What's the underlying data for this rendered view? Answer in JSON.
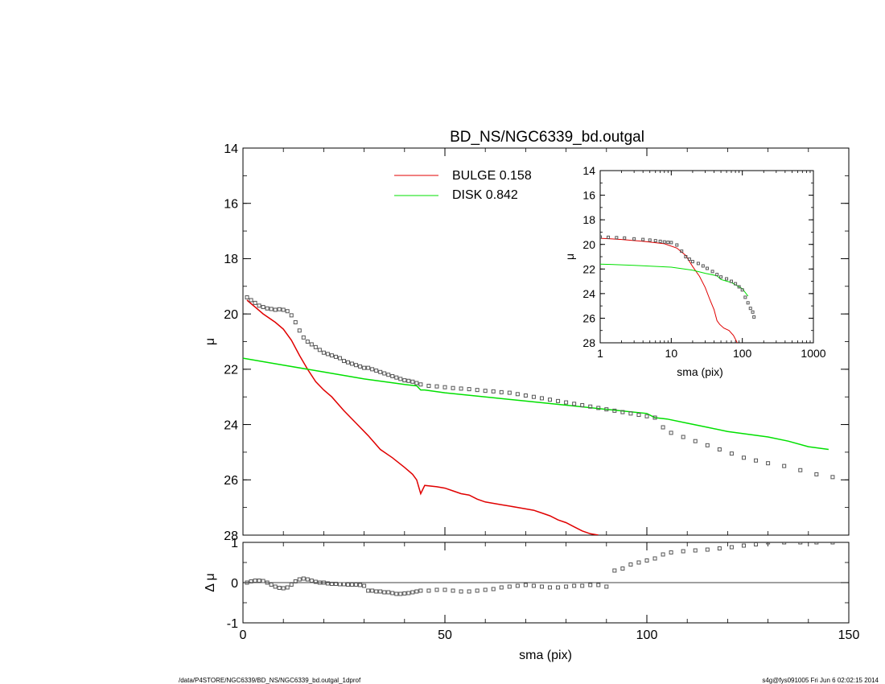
{
  "colors": {
    "bulge": "#e00000",
    "disk": "#00e000",
    "data": "#555555",
    "axis": "#000000"
  },
  "footer": {
    "left": "/data/P4STORE/NGC6339/BD_NS/NGC6339_bd.outgal_1dprof",
    "right": "s4g@fys091005  Fri Jun  6 02:02:15 2014"
  },
  "chart_data": [
    {
      "type": "line",
      "title": "BD_NS/NGC6339_bd.outgal",
      "xlabel": "",
      "ylabel": "μ",
      "xlim": [
        0,
        150
      ],
      "ylim": [
        28,
        14
      ],
      "yticks": [
        14,
        16,
        18,
        20,
        22,
        24,
        26,
        28
      ],
      "legend": [
        {
          "label": "BULGE  0.158",
          "color": "#e00000"
        },
        {
          "label": "DISK  0.842",
          "color": "#00e000"
        }
      ],
      "legend_position": "top-center",
      "series": [
        {
          "name": "BULGE",
          "style": "line",
          "x": [
            1,
            3,
            5,
            8,
            10,
            12,
            14,
            16,
            18,
            20,
            22,
            25,
            28,
            31,
            34,
            37,
            40,
            42,
            43,
            44,
            45,
            48,
            50,
            52,
            54,
            56,
            58,
            60,
            62,
            64,
            66,
            68,
            70,
            72,
            74,
            76,
            78,
            80,
            82,
            84,
            86,
            88
          ],
          "y": [
            19.5,
            19.75,
            20.0,
            20.3,
            20.55,
            20.95,
            21.5,
            22.0,
            22.45,
            22.75,
            23.0,
            23.5,
            23.95,
            24.4,
            24.9,
            25.2,
            25.55,
            25.8,
            26.0,
            26.5,
            26.2,
            26.25,
            26.3,
            26.4,
            26.5,
            26.55,
            26.7,
            26.8,
            26.85,
            26.9,
            26.95,
            27.0,
            27.05,
            27.1,
            27.2,
            27.3,
            27.45,
            27.55,
            27.7,
            27.85,
            27.95,
            28.0
          ]
        },
        {
          "name": "DISK",
          "style": "line",
          "x": [
            0,
            10,
            20,
            30,
            40,
            43,
            44,
            45,
            50,
            60,
            70,
            80,
            90,
            100,
            102,
            105,
            110,
            115,
            120,
            125,
            130,
            135,
            140,
            145
          ],
          "y": [
            21.6,
            21.85,
            22.1,
            22.35,
            22.55,
            22.6,
            22.75,
            22.75,
            22.85,
            23.0,
            23.15,
            23.3,
            23.45,
            23.6,
            23.75,
            23.8,
            23.95,
            24.1,
            24.25,
            24.35,
            24.45,
            24.6,
            24.8,
            24.9
          ]
        },
        {
          "name": "data",
          "style": "markers",
          "x": [
            1,
            2,
            3,
            4,
            5,
            6,
            7,
            8,
            9,
            10,
            11,
            12,
            13,
            14,
            15,
            16,
            17,
            18,
            19,
            20,
            21,
            22,
            23,
            24,
            25,
            26,
            27,
            28,
            29,
            30,
            31,
            32,
            33,
            34,
            35,
            36,
            37,
            38,
            39,
            40,
            41,
            42,
            43,
            44,
            46,
            48,
            50,
            52,
            54,
            56,
            58,
            60,
            62,
            64,
            66,
            68,
            70,
            72,
            74,
            76,
            78,
            80,
            82,
            84,
            86,
            88,
            90,
            92,
            94,
            96,
            98,
            100,
            102,
            104,
            106,
            109,
            112,
            115,
            118,
            121,
            124,
            127,
            130,
            134,
            138,
            142,
            146
          ],
          "y": [
            19.4,
            19.5,
            19.6,
            19.7,
            19.75,
            19.8,
            19.82,
            19.85,
            19.83,
            19.85,
            19.9,
            20.05,
            20.3,
            20.6,
            20.85,
            21.0,
            21.1,
            21.2,
            21.3,
            21.4,
            21.45,
            21.5,
            21.55,
            21.6,
            21.7,
            21.75,
            21.8,
            21.85,
            21.9,
            21.95,
            21.95,
            22.0,
            22.05,
            22.1,
            22.15,
            22.2,
            22.25,
            22.3,
            22.35,
            22.4,
            22.42,
            22.45,
            22.5,
            22.55,
            22.6,
            22.62,
            22.65,
            22.68,
            22.7,
            22.72,
            22.75,
            22.78,
            22.8,
            22.83,
            22.85,
            22.9,
            22.95,
            23.0,
            23.05,
            23.1,
            23.15,
            23.2,
            23.25,
            23.3,
            23.35,
            23.4,
            23.45,
            23.5,
            23.55,
            23.6,
            23.65,
            23.7,
            23.75,
            24.1,
            24.3,
            24.45,
            24.6,
            24.75,
            24.9,
            25.05,
            25.2,
            25.3,
            25.4,
            25.5,
            25.65,
            25.8,
            25.9
          ]
        }
      ]
    },
    {
      "type": "scatter",
      "title": "",
      "xlabel": "sma (pix)",
      "ylabel": "Δ μ",
      "xlim": [
        0,
        150
      ],
      "ylim": [
        -1,
        1
      ],
      "xticks": [
        0,
        50,
        100,
        150
      ],
      "yticks": [
        -1,
        0,
        1
      ],
      "series": [
        {
          "name": "residual",
          "style": "markers",
          "x": [
            1,
            2,
            3,
            4,
            5,
            6,
            7,
            8,
            9,
            10,
            11,
            12,
            13,
            14,
            15,
            16,
            17,
            18,
            19,
            20,
            21,
            22,
            23,
            24,
            25,
            26,
            27,
            28,
            29,
            30,
            31,
            32,
            33,
            34,
            35,
            36,
            37,
            38,
            39,
            40,
            41,
            42,
            43,
            44,
            46,
            48,
            50,
            52,
            54,
            56,
            58,
            60,
            62,
            64,
            66,
            68,
            70,
            72,
            74,
            76,
            78,
            80,
            82,
            84,
            86,
            88,
            90,
            92,
            94,
            96,
            98,
            100,
            102,
            104,
            106,
            109,
            112,
            115,
            118,
            121,
            124,
            127,
            130,
            134,
            138,
            142,
            146
          ],
          "y": [
            0.0,
            0.03,
            0.05,
            0.05,
            0.04,
            0.0,
            -0.05,
            -0.1,
            -0.13,
            -0.14,
            -0.12,
            -0.05,
            0.03,
            0.08,
            0.1,
            0.08,
            0.05,
            0.02,
            0.0,
            0.0,
            -0.02,
            -0.03,
            -0.03,
            -0.04,
            -0.04,
            -0.05,
            -0.05,
            -0.05,
            -0.06,
            -0.08,
            -0.2,
            -0.2,
            -0.22,
            -0.22,
            -0.24,
            -0.24,
            -0.26,
            -0.28,
            -0.28,
            -0.27,
            -0.26,
            -0.24,
            -0.22,
            -0.2,
            -0.2,
            -0.18,
            -0.18,
            -0.2,
            -0.22,
            -0.22,
            -0.2,
            -0.18,
            -0.16,
            -0.12,
            -0.1,
            -0.08,
            -0.06,
            -0.08,
            -0.1,
            -0.12,
            -0.12,
            -0.1,
            -0.08,
            -0.08,
            -0.06,
            -0.06,
            -0.1,
            0.3,
            0.35,
            0.45,
            0.5,
            0.55,
            0.6,
            0.7,
            0.75,
            0.78,
            0.8,
            0.82,
            0.85,
            0.88,
            0.92,
            0.95,
            1.0,
            1.0,
            1.0,
            1.0,
            1.0
          ]
        }
      ]
    },
    {
      "type": "line",
      "title": "",
      "xlabel": "sma (pix)",
      "ylabel": "μ",
      "xscale": "log",
      "xlim": [
        1,
        1000
      ],
      "ylim": [
        28,
        14
      ],
      "xticks": [
        1,
        10,
        100,
        1000
      ],
      "yticks": [
        14,
        16,
        18,
        20,
        22,
        24,
        26,
        28
      ],
      "series": [
        {
          "name": "BULGE",
          "style": "line",
          "x": [
            1,
            2,
            4,
            8,
            12,
            16,
            20,
            25,
            30,
            35,
            40,
            44,
            48,
            55,
            65,
            75,
            85
          ],
          "y": [
            19.5,
            19.6,
            19.75,
            19.95,
            20.3,
            20.9,
            21.8,
            22.6,
            23.5,
            24.5,
            25.3,
            26.2,
            26.5,
            26.8,
            27.0,
            27.4,
            28.0
          ]
        },
        {
          "name": "DISK",
          "style": "line",
          "x": [
            1,
            3,
            10,
            20,
            30,
            44,
            50,
            70,
            100,
            120
          ],
          "y": [
            21.6,
            21.7,
            21.85,
            22.1,
            22.35,
            22.55,
            22.85,
            23.1,
            23.6,
            24.2
          ]
        },
        {
          "name": "data",
          "style": "markers",
          "x": [
            1,
            1.3,
            1.7,
            2.2,
            3,
            4,
            5,
            6,
            7,
            8,
            9,
            10,
            12,
            14,
            16,
            18,
            20,
            24,
            28,
            32,
            38,
            44,
            50,
            60,
            70,
            80,
            90,
            100,
            110,
            120,
            130,
            140,
            146
          ],
          "y": [
            19.4,
            19.42,
            19.45,
            19.48,
            19.55,
            19.6,
            19.65,
            19.7,
            19.75,
            19.8,
            19.83,
            19.85,
            20.05,
            20.55,
            21.0,
            21.2,
            21.4,
            21.55,
            21.75,
            21.95,
            22.2,
            22.45,
            22.65,
            22.8,
            23.0,
            23.2,
            23.45,
            23.7,
            24.3,
            24.75,
            25.2,
            25.5,
            25.9
          ]
        }
      ]
    }
  ]
}
